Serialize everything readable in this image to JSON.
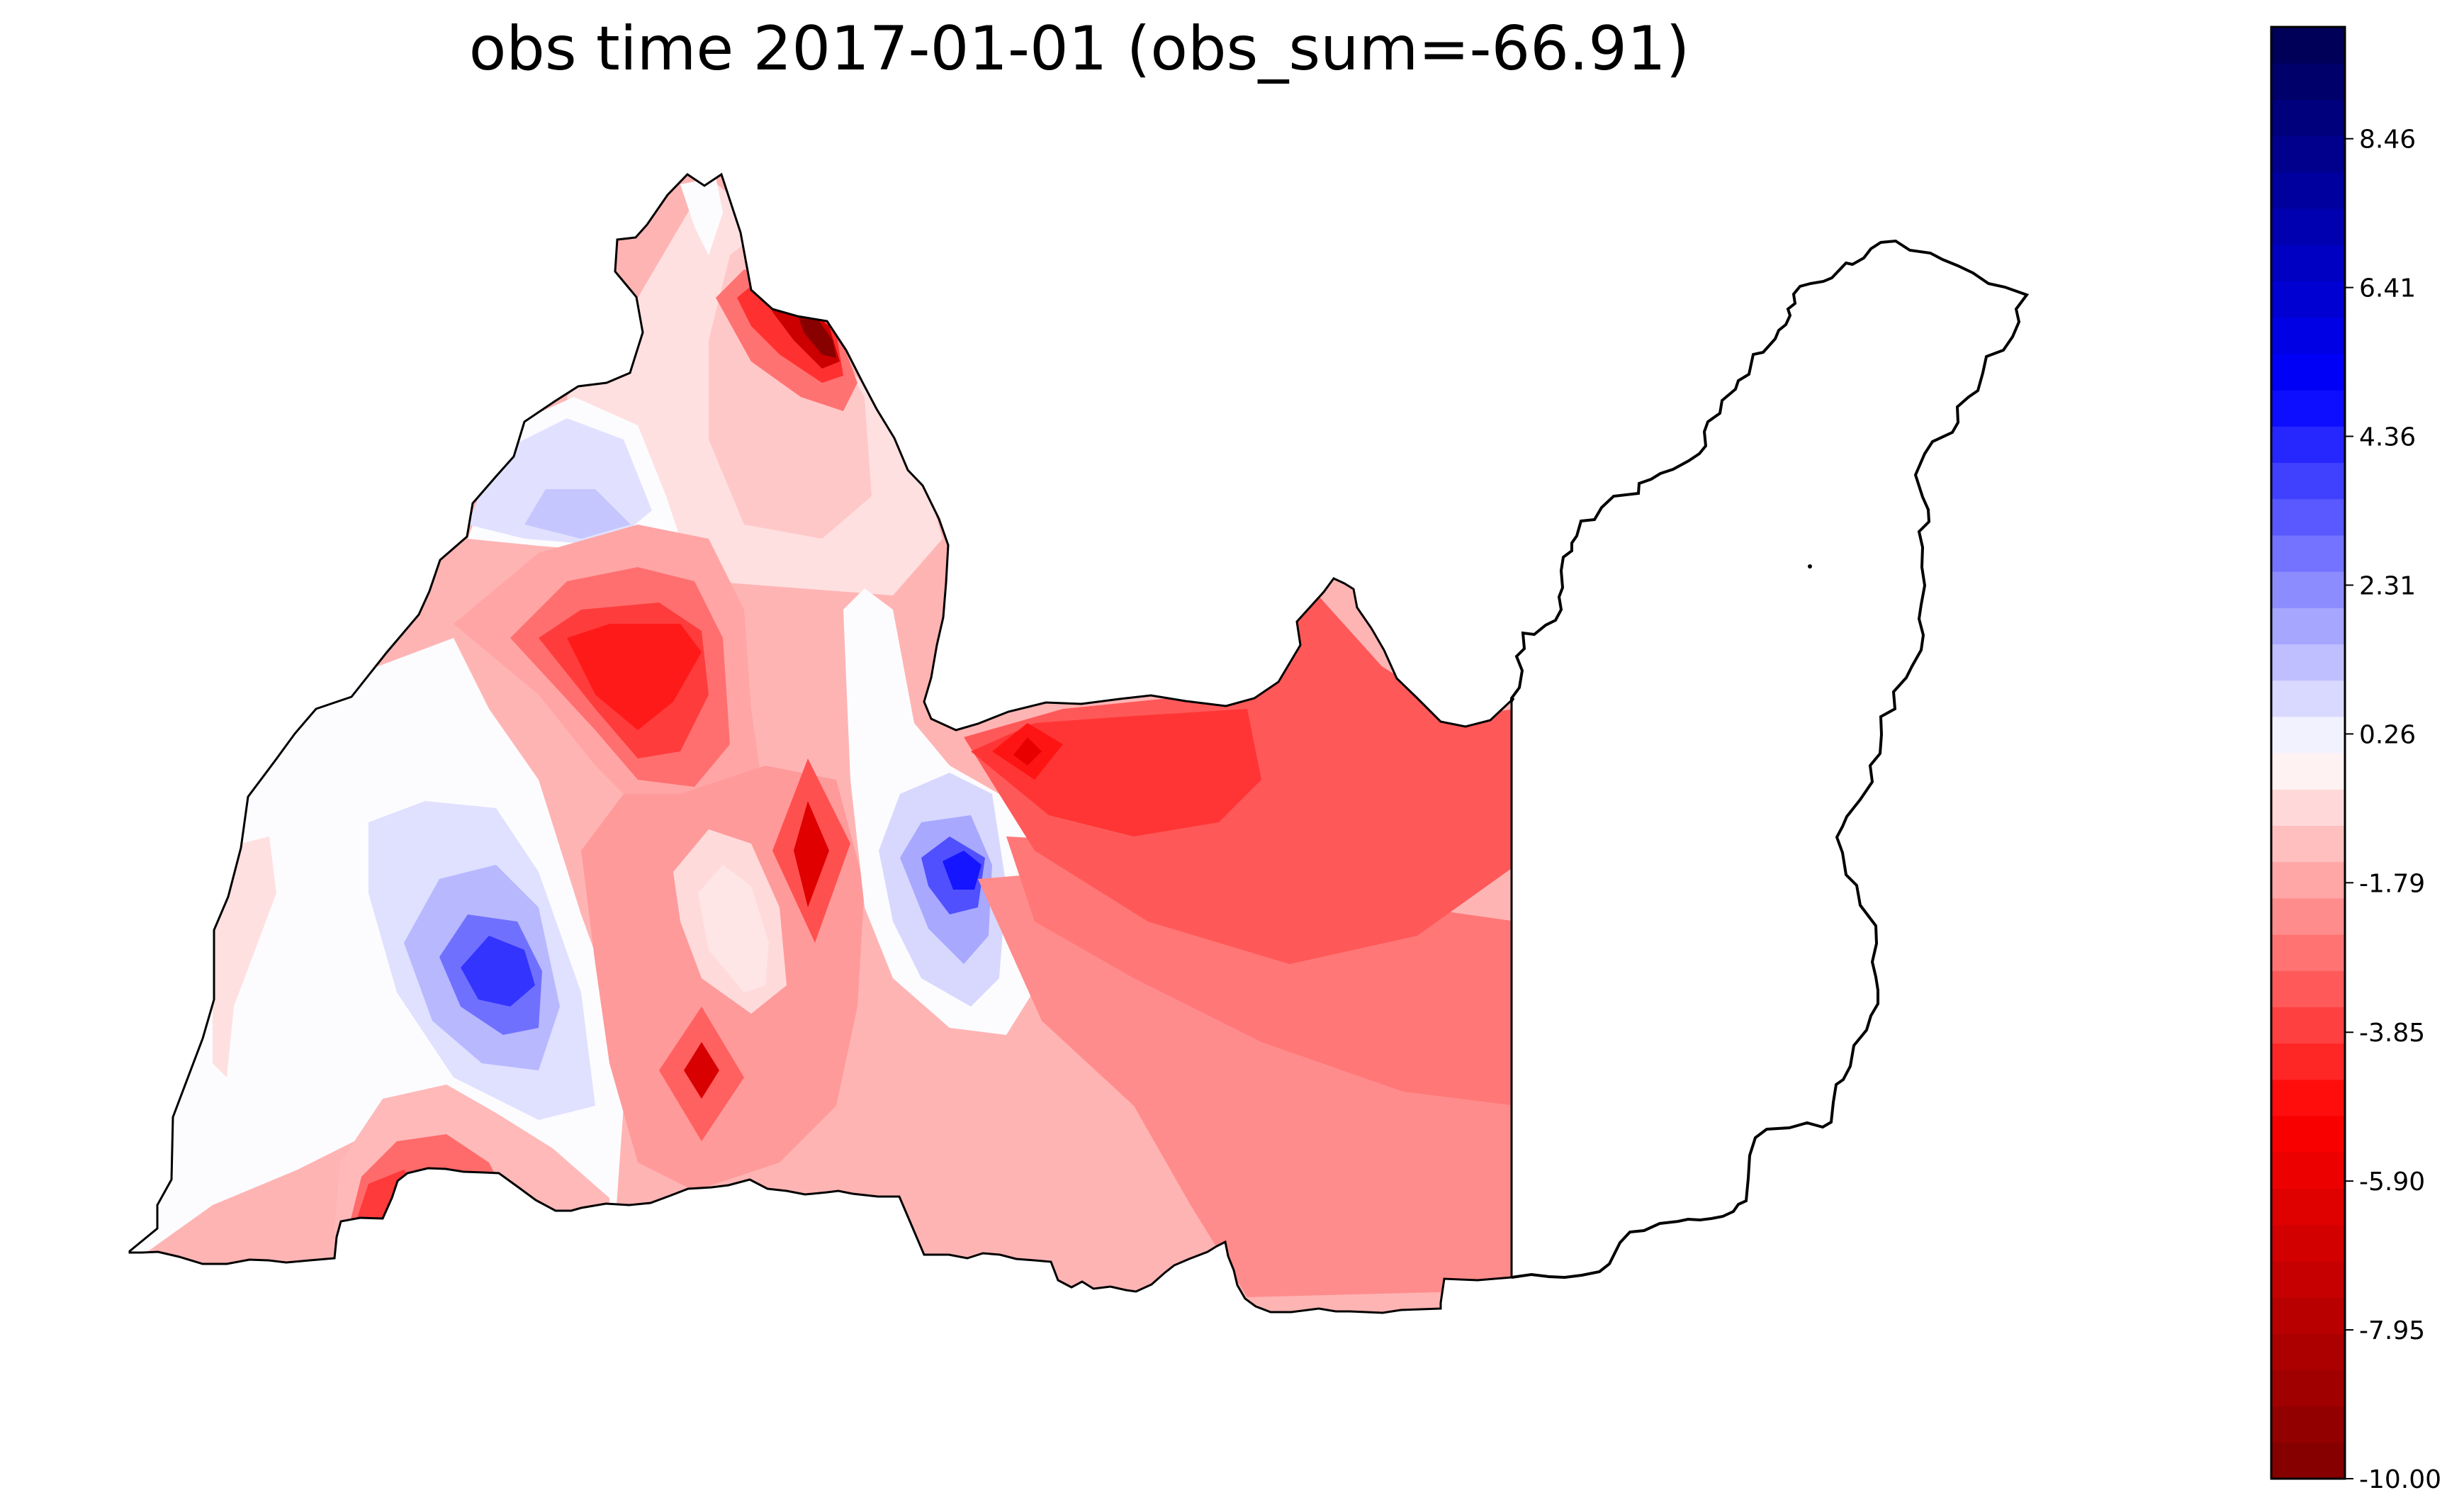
{
  "map": {
    "title": "obs time 2017-01-01 (obs_sum=-66.91)"
  },
  "colorbar": {
    "min": -10.0,
    "max": 10.0,
    "levels": 40,
    "tick_labels": [
      "8.46",
      "6.41",
      "4.36",
      "2.31",
      "0.26",
      "-1.79",
      "-3.85",
      "-5.90",
      "-7.95",
      "-10.00"
    ],
    "tick_values": [
      8.46,
      6.41,
      4.36,
      2.31,
      0.26,
      -1.79,
      -3.85,
      -5.9,
      -7.95,
      -10.0
    ],
    "colormap": "seismic_r",
    "colors": {
      "low": "#800000",
      "mid": "#ffffff",
      "high": "#000050"
    }
  }
}
